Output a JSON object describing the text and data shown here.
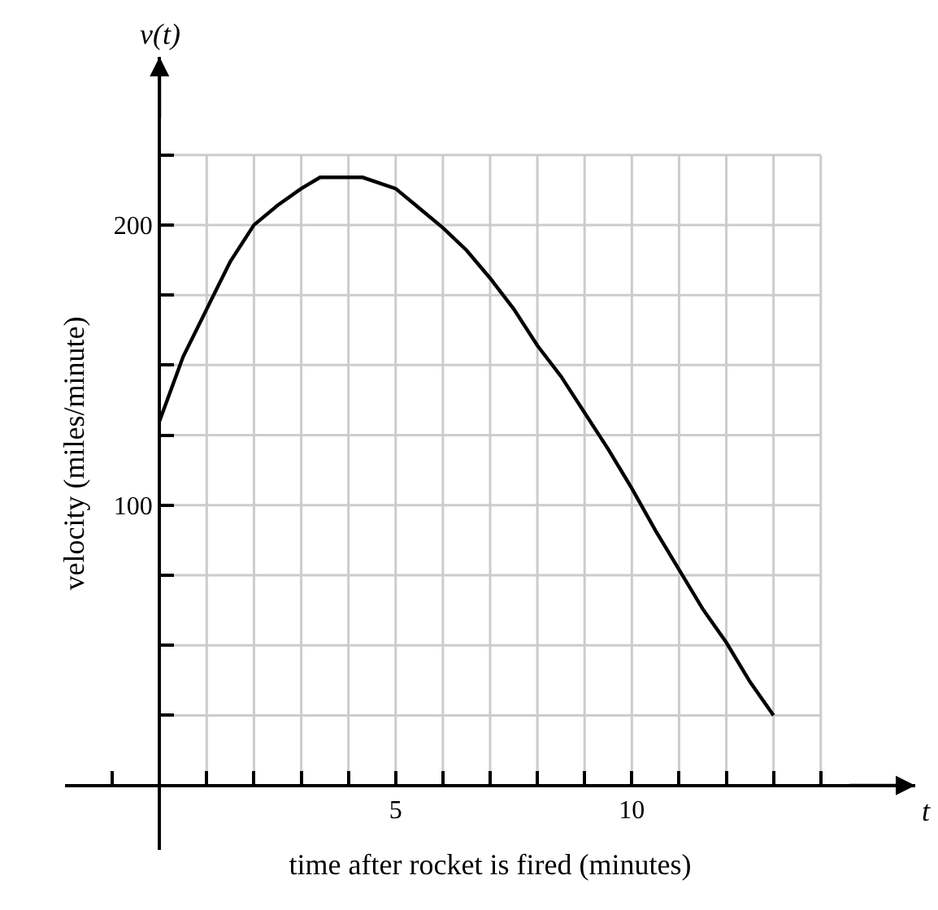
{
  "chart_data": {
    "type": "line",
    "xlabel": "time after rocket is fired (minutes)",
    "ylabel": "velocity (miles/minute)",
    "annotations": [
      "v(t)",
      "t"
    ],
    "x": [
      0,
      0.5,
      1,
      1.5,
      2,
      2.5,
      3,
      3.4,
      4.3,
      5,
      5.5,
      6,
      6.5,
      7,
      7.5,
      8,
      8.5,
      9,
      9.5,
      10,
      10.5,
      11,
      11.5,
      12,
      12.5,
      13
    ],
    "series": [
      {
        "color": "#000000",
        "values": [
          130,
          153,
          170,
          187,
          200,
          207,
          213,
          217,
          217,
          213,
          206,
          199,
          191,
          181,
          170,
          157,
          146,
          133,
          120,
          106,
          91,
          77,
          63,
          51,
          37,
          25
        ]
      }
    ],
    "xlim": [
      -2,
      16
    ],
    "ylim": [
      -23,
      260
    ],
    "xticks": [
      {
        "value": -1,
        "label": null
      },
      {
        "value": 1,
        "label": null
      },
      {
        "value": 2,
        "label": null
      },
      {
        "value": 3,
        "label": null
      },
      {
        "value": 4,
        "label": null
      },
      5,
      {
        "value": 6,
        "label": null
      },
      {
        "value": 7,
        "label": null
      },
      {
        "value": 8,
        "label": null
      },
      {
        "value": 9,
        "label": null
      },
      10,
      {
        "value": 11,
        "label": null
      },
      {
        "value": 12,
        "label": null
      },
      {
        "value": 13,
        "label": null
      },
      {
        "value": 14,
        "label": null
      }
    ],
    "yticks": [
      {
        "value": 25,
        "label": null
      },
      {
        "value": 50,
        "label": null
      },
      {
        "value": 75,
        "label": null
      },
      100,
      {
        "value": 125,
        "label": null
      },
      {
        "value": 150,
        "label": null
      },
      {
        "value": 175,
        "label": null
      },
      200,
      {
        "value": 225,
        "label": null
      }
    ],
    "grid": true,
    "marker": "none",
    "line_style": "solid"
  }
}
